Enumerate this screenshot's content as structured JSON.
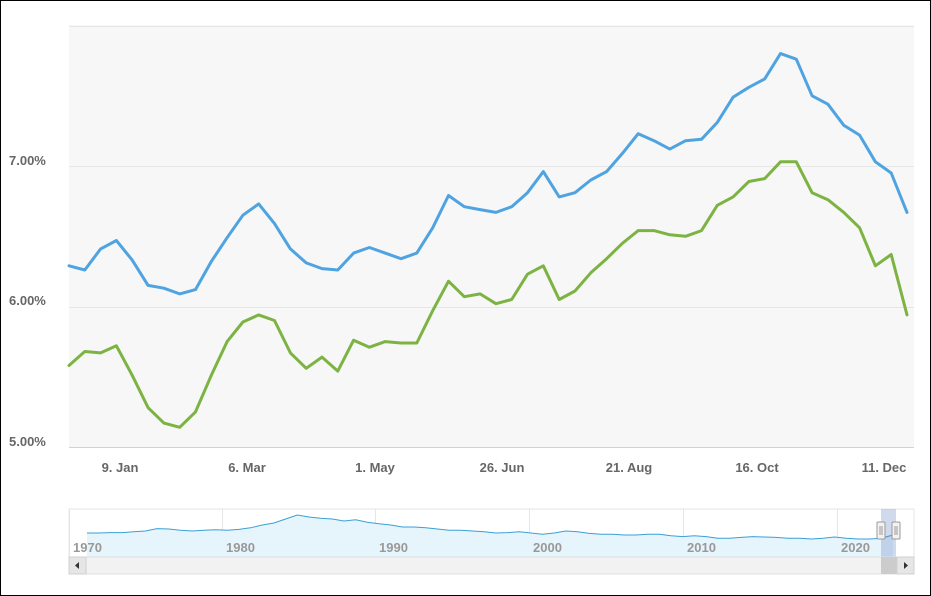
{
  "chart_data": {
    "type": "line",
    "title": "",
    "xlabel": "",
    "ylabel": "",
    "ylim": [
      5.0,
      8.0
    ],
    "y_ticks": [
      "5.00%",
      "6.00%",
      "7.00%"
    ],
    "x_ticks": [
      "9. Jan",
      "6. Mar",
      "1. May",
      "26. Jun",
      "21. Aug",
      "16. Oct",
      "11. Dec"
    ],
    "grid": true,
    "legend": "none",
    "colors": {
      "series_1": "#4fa3e0",
      "series_2": "#7cb342"
    },
    "series": [
      {
        "values": [
          6.29,
          6.26,
          6.41,
          6.47,
          6.33,
          6.15,
          6.13,
          6.09,
          6.12,
          6.32,
          6.49,
          6.65,
          6.73,
          6.59,
          6.41,
          6.31,
          6.27,
          6.26,
          6.38,
          6.42,
          6.38,
          6.34,
          6.38,
          6.56,
          6.79,
          6.71,
          6.69,
          6.67,
          6.71,
          6.81,
          6.96,
          6.78,
          6.81,
          6.9,
          6.96,
          7.09,
          7.23,
          7.18,
          7.12,
          7.18,
          7.19,
          7.31,
          7.49,
          7.56,
          7.62,
          7.8,
          7.76,
          7.5,
          7.44,
          7.29,
          7.22,
          7.03,
          6.95,
          6.67
        ]
      },
      {
        "values": [
          5.58,
          5.68,
          5.67,
          5.72,
          5.51,
          5.28,
          5.17,
          5.14,
          5.25,
          5.51,
          5.75,
          5.89,
          5.94,
          5.9,
          5.67,
          5.56,
          5.64,
          5.54,
          5.76,
          5.71,
          5.75,
          5.74,
          5.74,
          5.97,
          6.18,
          6.07,
          6.09,
          6.02,
          6.05,
          6.23,
          6.29,
          6.05,
          6.11,
          6.24,
          6.34,
          6.45,
          6.54,
          6.54,
          6.51,
          6.5,
          6.54,
          6.72,
          6.78,
          6.89,
          6.91,
          7.03,
          7.03,
          6.81,
          6.76,
          6.67,
          6.56,
          6.29,
          6.37,
          5.94
        ]
      }
    ],
    "navigator": {
      "x_ticks": [
        "1970",
        "1980",
        "1990",
        "2000",
        "2010",
        "2020"
      ],
      "values": [
        0.55,
        0.55,
        0.56,
        0.56,
        0.58,
        0.6,
        0.66,
        0.65,
        0.62,
        0.6,
        0.62,
        0.63,
        0.62,
        0.64,
        0.68,
        0.75,
        0.8,
        0.9,
        1.0,
        0.95,
        0.92,
        0.9,
        0.85,
        0.88,
        0.82,
        0.78,
        0.75,
        0.7,
        0.7,
        0.68,
        0.65,
        0.62,
        0.62,
        0.6,
        0.58,
        0.55,
        0.56,
        0.58,
        0.55,
        0.52,
        0.55,
        0.6,
        0.58,
        0.54,
        0.52,
        0.52,
        0.5,
        0.5,
        0.52,
        0.52,
        0.48,
        0.46,
        0.48,
        0.46,
        0.42,
        0.42,
        0.44,
        0.46,
        0.45,
        0.44,
        0.42,
        0.42,
        0.4,
        0.42,
        0.45,
        0.42,
        0.4,
        0.4,
        0.42,
        0.5
      ]
    }
  }
}
